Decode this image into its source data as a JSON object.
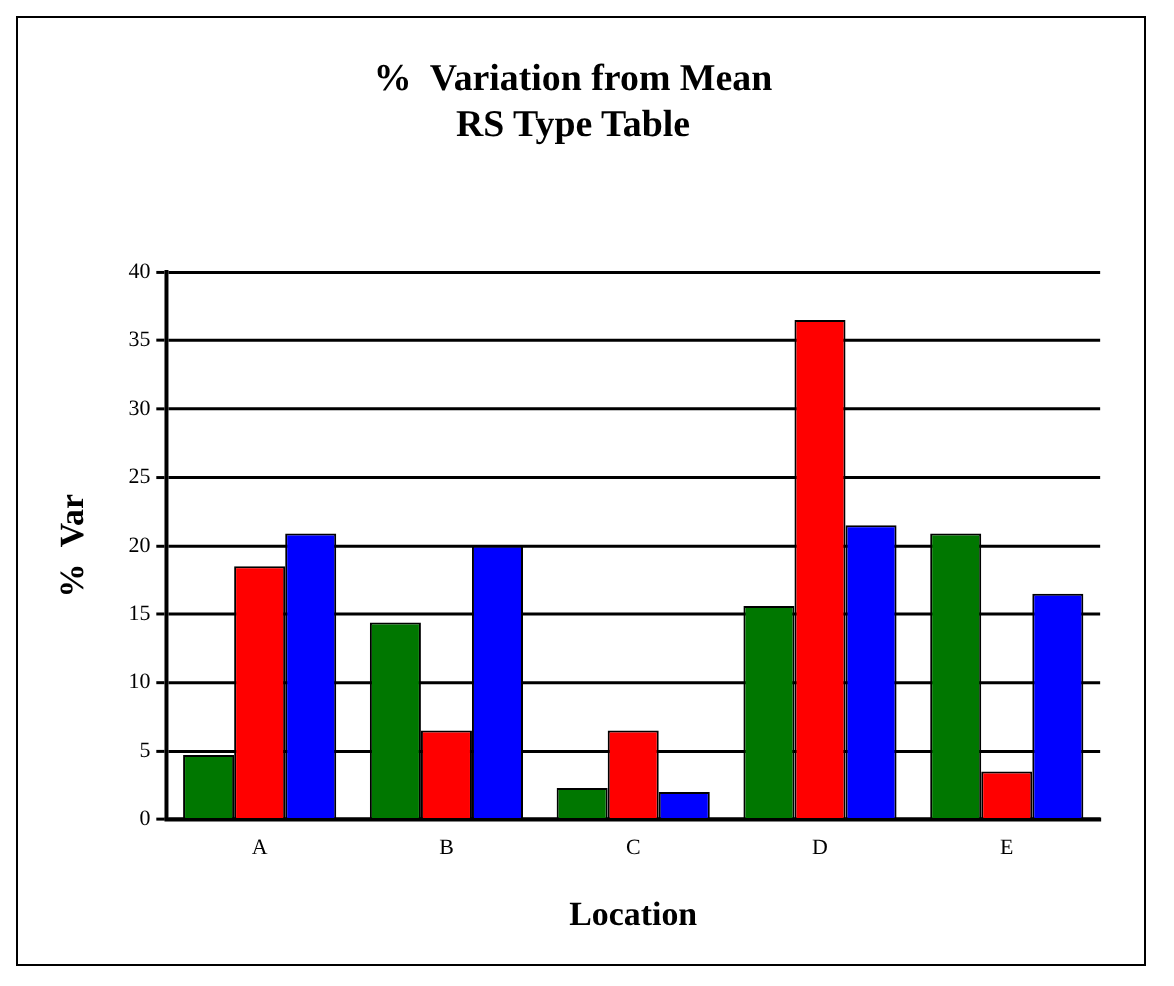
{
  "chart_data": {
    "type": "bar",
    "title": "%  Variation from Mean\nRS Type Table",
    "xlabel": "Location",
    "ylabel": "%  Var",
    "categories": [
      "A",
      "B",
      "C",
      "D",
      "E"
    ],
    "series": [
      {
        "color": "#007700",
        "values": [
          4.7,
          14.4,
          2.3,
          15.6,
          20.9
        ]
      },
      {
        "color": "#ff0000",
        "values": [
          18.5,
          6.5,
          6.5,
          36.5,
          3.5
        ]
      },
      {
        "color": "#0000ff",
        "values": [
          20.9,
          20.0,
          2.0,
          21.5,
          16.5
        ]
      }
    ],
    "ylim": [
      0,
      40
    ],
    "yticks": [
      0,
      5,
      10,
      15,
      20,
      25,
      30,
      35,
      40
    ],
    "grid": "y",
    "legend": false
  }
}
